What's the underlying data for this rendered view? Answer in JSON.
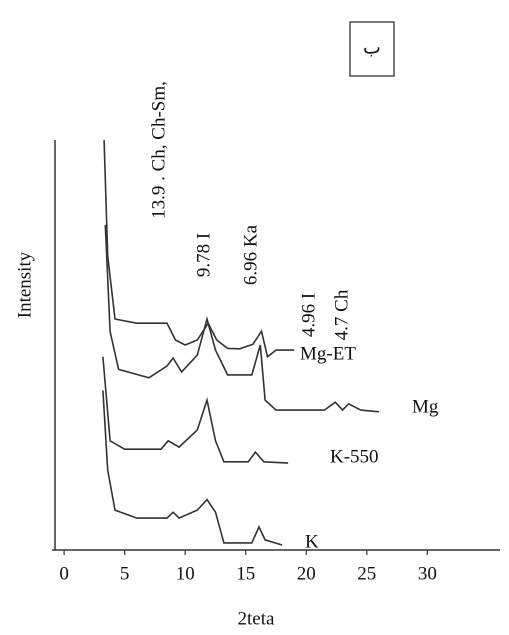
{
  "chart_data": {
    "type": "line",
    "panel_label": "ب",
    "x_label": "2teta",
    "y_label": "Intensity",
    "xlim": [
      -1,
      36
    ],
    "ylim": [
      0,
      100
    ],
    "xticks": [
      0,
      5,
      10,
      15,
      20,
      25,
      30
    ],
    "annotations": [
      "13.9 . Ch, Ch-Sm,",
      "9.78 I",
      "6.96 Ka",
      "4.96 I",
      "4.7 Ch"
    ],
    "series": [
      {
        "name": "Mg-ET",
        "color": "#333333",
        "x": [
          3.3,
          3.6,
          4.2,
          6,
          8.5,
          9.2,
          10,
          11,
          11.9,
          12.6,
          13.5,
          14.5,
          15.6,
          16.3,
          16.8,
          17.5,
          19
        ],
        "values": [
          97.6,
          70,
          55,
          54,
          54,
          50,
          48.8,
          50,
          54,
          50,
          48,
          47.9,
          49,
          52.1,
          46,
          47.6,
          47.6
        ]
      },
      {
        "name": "Mg",
        "color": "#333333",
        "x": [
          3.4,
          3.8,
          4.5,
          7,
          8.5,
          9,
          9.7,
          11,
          11.8,
          12.5,
          13.5,
          15.5,
          16.2,
          16.6,
          17.5,
          21.5,
          22.4,
          23,
          23.5,
          24.5,
          26
        ],
        "values": [
          77.4,
          52,
          43,
          41,
          43.8,
          45.7,
          42.4,
          46.4,
          55,
          47.6,
          41.7,
          41.7,
          48.8,
          35.7,
          33.3,
          33.3,
          35.2,
          33.3,
          34.8,
          33.3,
          32.9
        ]
      },
      {
        "name": "K-550",
        "color": "#333333",
        "x": [
          3.2,
          3.8,
          5,
          8,
          8.6,
          9.5,
          11,
          11.8,
          12.5,
          13.2,
          15.2,
          15.8,
          16.5,
          18.5
        ],
        "values": [
          46,
          26,
          24,
          24,
          26,
          24.5,
          28.6,
          35.7,
          26,
          21,
          21,
          23.3,
          21,
          20.7
        ]
      },
      {
        "name": "K",
        "color": "#333333",
        "x": [
          3.2,
          3.6,
          4.2,
          6,
          8.5,
          9,
          9.5,
          11,
          11.8,
          12.5,
          13.2,
          15.5,
          16.1,
          16.6,
          18
        ],
        "values": [
          38,
          19,
          9.5,
          7.6,
          7.6,
          9,
          7.6,
          9.5,
          12,
          9,
          1.7,
          1.7,
          5.5,
          2.4,
          1.2
        ]
      }
    ]
  }
}
